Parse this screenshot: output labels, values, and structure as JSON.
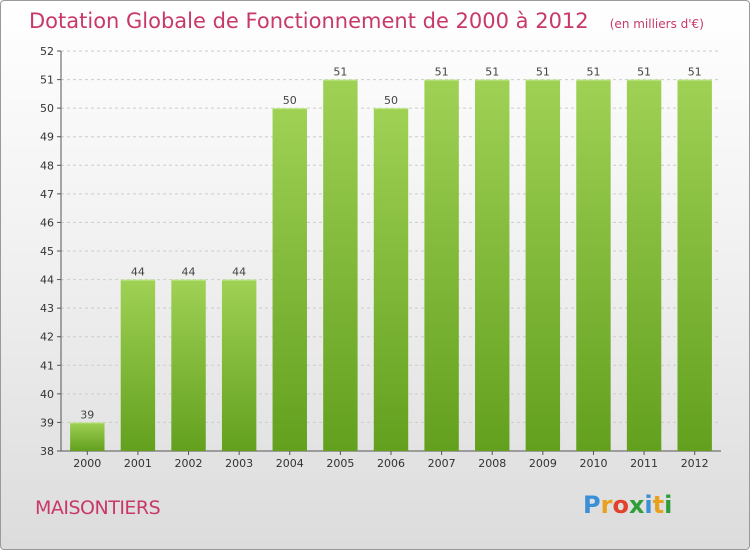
{
  "header": {
    "title": "Dotation Globale de Fonctionnement de 2000 à 2012",
    "unit": "(en milliers d'€)"
  },
  "footer": {
    "place": "MAISONTIERS",
    "logo_text": "Proxiti"
  },
  "colors": {
    "title": "#c8386b",
    "bar_top": "#9fd155",
    "bar_bottom": "#63a01e",
    "grid": "#cccccc"
  },
  "chart_data": {
    "type": "bar",
    "categories": [
      "2000",
      "2001",
      "2002",
      "2003",
      "2004",
      "2005",
      "2006",
      "2007",
      "2008",
      "2009",
      "2010",
      "2011",
      "2012"
    ],
    "values": [
      39,
      44,
      44,
      44,
      50,
      51,
      50,
      51,
      51,
      51,
      51,
      51,
      51
    ],
    "ylim": [
      38,
      52
    ],
    "yticks": [
      38,
      39,
      40,
      41,
      42,
      43,
      44,
      45,
      46,
      47,
      48,
      49,
      50,
      51,
      52
    ],
    "grid": true,
    "title": "Dotation Globale de Fonctionnement de 2000 à 2012",
    "xlabel": "",
    "ylabel": ""
  }
}
